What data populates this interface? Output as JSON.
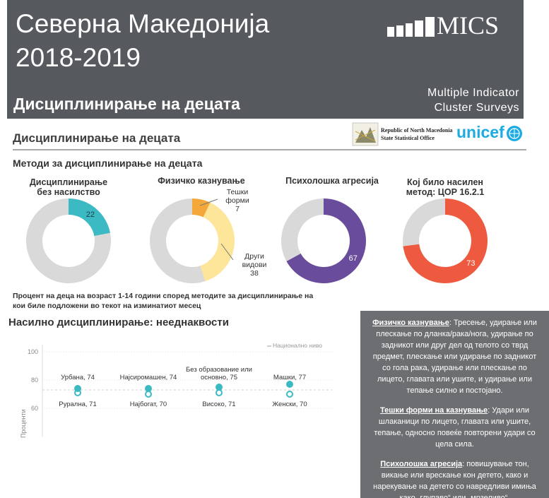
{
  "header": {
    "title_lines": [
      "Северна Македонија",
      "2018-2019"
    ],
    "subtitle": "Дисциплинирање на децата",
    "logo": "MICS",
    "tagline_lines": [
      "Multiple Indicator",
      "Cluster Surveys"
    ]
  },
  "section": {
    "title": "Дисциплинирање на децата",
    "office_lines": [
      "Republic of North Macedonia",
      "State Statistical Office"
    ],
    "unicef": "unicef"
  },
  "methods": {
    "title": "Методи за дисциплинирање на децата",
    "rest_color": "#d9d9d9",
    "donuts": [
      {
        "title_lines": [
          "Дисциплинирање",
          "без насилство"
        ],
        "segments": [
          {
            "value": 22,
            "color": "#3bbac4",
            "label_color": "#1f3b46"
          }
        ]
      },
      {
        "title_lines": [
          "Физичко казнување"
        ],
        "segments": [
          {
            "name": "Тешки форми",
            "value": 7,
            "color": "#f5a83a"
          },
          {
            "name": "Други видови",
            "value": 38,
            "color": "#fde59a"
          }
        ]
      },
      {
        "title_lines": [
          "Психолошка агресија"
        ],
        "segments": [
          {
            "value": 67,
            "color": "#6a4c9c",
            "label_color": "#ffffff"
          }
        ]
      },
      {
        "title_lines": [
          "Кој било насилен",
          "метод: ЦОР 16.2.1"
        ],
        "segments": [
          {
            "value": 73,
            "color": "#ee5a3f",
            "label_color": "#ffffff"
          }
        ]
      }
    ],
    "note": "Процент на деца на возраст 1-14 години според методите за дисциплинирање на кои биле подложени во текот на изминатиот месец"
  },
  "inequalities": {
    "title": "Насилно дисциплинирање: нееднаквости",
    "y_label": "Проценти",
    "legend": "Национално ниво",
    "national_level": 73,
    "national_color": "#cfcfcf",
    "color": "#3bbac4",
    "ylim": [
      40,
      100
    ],
    "yticks": [
      60,
      80,
      100
    ],
    "groups": [
      {
        "top": {
          "label": "Урбана, 74",
          "value": 74
        },
        "bottom": {
          "label": "Рурална, 71",
          "value": 71
        }
      },
      {
        "top": {
          "label": "Најсиромашен, 74",
          "value": 74
        },
        "bottom": {
          "label": "Најбогат, 70",
          "value": 70
        }
      },
      {
        "top": {
          "label": "Без образование или основно, 75",
          "value": 75
        },
        "bottom": {
          "label": "Високо, 71",
          "value": 71
        }
      },
      {
        "top": {
          "label": "Машки, 77",
          "value": 77
        },
        "bottom": {
          "label": "Женски, 70",
          "value": 70
        }
      }
    ]
  },
  "definitions": [
    {
      "term": "Физичко казнување",
      "text": ": Тресење, удирање или плескање по дланка/рака/нога, удирање по задникот или друг дел од телото со тврд предмет, плескање или удирање по задникот со гола рака, удирање или плескање по лицето, главата или ушите, и удирање или тепање силно и постојано."
    },
    {
      "term": "Тешки форми на казнување",
      "text": ": Удари или шлаканици по лицето, главата или ушите, тепање, односно повеќе повторени удари со цела сила."
    },
    {
      "term": "Психолошка агресија",
      "text": ": повишување тон, викање или врескање кон детето, како и нарекување на детето со навредливи имиња како „глупаво“ или „мрзеливо“."
    }
  ]
}
